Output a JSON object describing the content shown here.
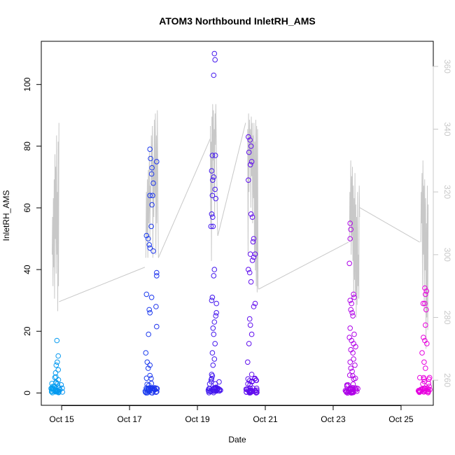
{
  "chart_data": {
    "type": "scatter",
    "title": "ATOM3 Northbound InletRH_AMS",
    "xlabel": "Date",
    "ylabel": "InletRH_AMS",
    "x_ticks": [
      "Oct 15",
      "Oct 17",
      "Oct 19",
      "Oct 21",
      "Oct 23",
      "Oct 25"
    ],
    "xlim": [
      14.4,
      25.95
    ],
    "ylim": [
      -4,
      114
    ],
    "y_ticks": [
      0,
      20,
      40,
      60,
      80,
      100
    ],
    "y2lim": [
      252,
      368
    ],
    "y2_ticks": [
      260,
      280,
      300,
      320,
      340,
      360
    ],
    "grid": false,
    "colors": {
      "point_start": "#00aaf0",
      "point_mid": "#2222ee",
      "point_mid2": "#8a00ee",
      "point_end": "#ee00dd",
      "secondary_line": "#c8c8c8"
    },
    "series": [
      {
        "role": "points",
        "clusters": [
          {
            "center": 14.85,
            "points": [
              [
                14.82,
                6.5
              ],
              [
                14.9,
                7.5
              ],
              [
                14.86,
                17.0
              ],
              [
                14.9,
                12.0
              ],
              [
                14.87,
                10.0
              ],
              [
                14.84,
                9.0
              ],
              [
                14.8,
                5.0
              ],
              [
                14.88,
                3.0
              ]
            ]
          },
          {
            "center": 17.65,
            "points": [
              [
                17.6,
                79
              ],
              [
                17.62,
                76
              ],
              [
                17.66,
                73
              ],
              [
                17.8,
                75
              ],
              [
                17.65,
                71
              ],
              [
                17.7,
                68
              ],
              [
                17.6,
                64
              ],
              [
                17.68,
                64
              ],
              [
                17.66,
                61
              ],
              [
                17.64,
                54
              ],
              [
                17.5,
                51
              ],
              [
                17.55,
                50
              ],
              [
                17.58,
                48
              ],
              [
                17.6,
                47
              ],
              [
                17.7,
                46
              ],
              [
                17.8,
                39
              ],
              [
                17.8,
                38
              ],
              [
                17.5,
                32
              ],
              [
                17.65,
                31
              ],
              [
                17.78,
                28
              ],
              [
                17.58,
                27
              ],
              [
                17.6,
                26
              ],
              [
                17.8,
                21.5
              ],
              [
                17.56,
                19
              ],
              [
                17.48,
                13
              ],
              [
                17.52,
                10
              ],
              [
                17.6,
                9
              ],
              [
                17.55,
                8
              ]
            ]
          },
          {
            "center": 19.5,
            "points": [
              [
                19.5,
                110
              ],
              [
                19.52,
                108
              ],
              [
                19.48,
                103
              ],
              [
                19.44,
                77
              ],
              [
                19.53,
                77
              ],
              [
                19.42,
                72
              ],
              [
                19.48,
                70
              ],
              [
                19.45,
                69
              ],
              [
                19.52,
                66
              ],
              [
                19.44,
                64
              ],
              [
                19.54,
                63
              ],
              [
                19.42,
                58
              ],
              [
                19.45,
                57
              ],
              [
                19.4,
                54
              ],
              [
                19.46,
                54
              ],
              [
                19.5,
                40
              ],
              [
                19.48,
                38
              ],
              [
                19.44,
                31
              ],
              [
                19.42,
                30
              ],
              [
                19.56,
                29
              ],
              [
                19.56,
                26
              ],
              [
                19.54,
                25
              ],
              [
                19.5,
                23
              ],
              [
                19.46,
                21
              ],
              [
                19.48,
                19
              ],
              [
                19.52,
                16
              ],
              [
                19.44,
                13
              ],
              [
                19.5,
                11
              ],
              [
                19.46,
                9
              ],
              [
                19.42,
                6
              ]
            ]
          },
          {
            "center": 20.6,
            "points": [
              [
                20.5,
                83
              ],
              [
                20.55,
                82
              ],
              [
                20.58,
                80
              ],
              [
                20.52,
                78
              ],
              [
                20.6,
                75
              ],
              [
                20.56,
                74
              ],
              [
                20.5,
                69
              ],
              [
                20.58,
                58
              ],
              [
                20.62,
                57
              ],
              [
                20.66,
                50
              ],
              [
                20.64,
                49
              ],
              [
                20.56,
                45
              ],
              [
                20.7,
                45
              ],
              [
                20.66,
                44
              ],
              [
                20.62,
                43
              ],
              [
                20.5,
                40
              ],
              [
                20.54,
                39
              ],
              [
                20.58,
                36
              ],
              [
                20.7,
                29
              ],
              [
                20.66,
                28
              ],
              [
                20.54,
                24
              ],
              [
                20.56,
                22
              ],
              [
                20.6,
                19
              ],
              [
                20.52,
                16
              ],
              [
                20.48,
                10
              ],
              [
                20.6,
                6
              ]
            ]
          },
          {
            "center": 23.55,
            "points": [
              [
                23.5,
                55
              ],
              [
                23.52,
                53
              ],
              [
                23.5,
                50
              ],
              [
                23.48,
                42
              ],
              [
                23.6,
                32
              ],
              [
                23.62,
                31
              ],
              [
                23.5,
                30
              ],
              [
                23.54,
                29
              ],
              [
                23.52,
                27
              ],
              [
                23.56,
                26
              ],
              [
                23.58,
                25
              ],
              [
                23.5,
                21
              ],
              [
                23.62,
                19
              ],
              [
                23.48,
                18
              ],
              [
                23.54,
                17
              ],
              [
                23.6,
                16
              ],
              [
                23.66,
                15
              ],
              [
                23.52,
                14
              ],
              [
                23.58,
                13
              ],
              [
                23.6,
                11
              ],
              [
                23.5,
                10
              ],
              [
                23.64,
                9
              ],
              [
                23.52,
                8
              ],
              [
                23.56,
                7
              ]
            ]
          },
          {
            "center": 25.7,
            "points": [
              [
                25.7,
                34
              ],
              [
                25.75,
                33
              ],
              [
                25.72,
                32
              ],
              [
                25.65,
                29
              ],
              [
                25.7,
                29
              ],
              [
                25.74,
                27
              ],
              [
                25.72,
                22
              ],
              [
                25.66,
                18
              ],
              [
                25.7,
                17
              ],
              [
                25.76,
                16
              ],
              [
                25.62,
                13
              ],
              [
                25.68,
                10
              ],
              [
                25.72,
                8
              ]
            ]
          }
        ]
      },
      {
        "role": "secondary_line_y2",
        "segments": [
          {
            "x_start": 14.72,
            "x_end": 14.92,
            "values": [
              300,
              312,
              290,
              318,
              296,
              324,
              286,
              332,
              305,
              328,
              294,
              338,
              300,
              320,
              282,
              336,
              290,
              342
            ]
          },
          {
            "x_start": 17.48,
            "x_end": 17.85,
            "values": [
              299,
              320,
              306,
              324,
              299,
              327,
              310,
              333,
              304,
              322,
              315,
              338,
              322,
              341,
              299,
              330,
              312,
              343,
              318,
              345,
              300,
              338,
              310,
              346,
              320,
              299
            ]
          },
          {
            "x_start": 19.38,
            "x_end": 19.6,
            "values": [
              341,
              310,
              336,
              298,
              344,
              318,
              348,
              330,
              346,
              320,
              340,
              312,
              345,
              335,
              348,
              338,
              330,
              320,
              310,
              306
            ]
          },
          {
            "x_start": 20.48,
            "x_end": 20.8,
            "values": [
              340,
              300,
              345,
              320,
              343,
              330,
              340,
              315,
              344,
              325,
              342,
              310,
              338,
              318,
              342,
              300,
              336,
              295,
              343,
              290,
              341,
              288,
              340,
              290,
              289
            ]
          },
          {
            "x_start": 23.48,
            "x_end": 23.78,
            "values": [
              304,
              320,
              310,
              330,
              300,
              325,
              306,
              328,
              298,
              322,
              286,
              318,
              292,
              326,
              288,
              316,
              280,
              312,
              284,
              320,
              290,
              300,
              286,
              322,
              312
            ]
          },
          {
            "x_start": 25.58,
            "x_end": 25.8,
            "values": [
              304,
              320,
              310,
              326,
              290,
              330,
              300,
              322,
              282,
              324,
              295,
              318,
              270,
              310,
              280,
              322,
              276,
              316
            ]
          }
        ],
        "connectors": [
          [
            [
              14.92,
              285
            ],
            [
              17.45,
              296
            ]
          ],
          [
            [
              17.85,
              299
            ],
            [
              19.38,
              337
            ]
          ],
          [
            [
              19.6,
              306
            ],
            [
              20.42,
              342
            ]
          ],
          [
            [
              20.8,
              289
            ],
            [
              23.45,
              304
            ]
          ],
          [
            [
              23.78,
              315
            ],
            [
              25.55,
              304
            ]
          ]
        ]
      }
    ]
  }
}
